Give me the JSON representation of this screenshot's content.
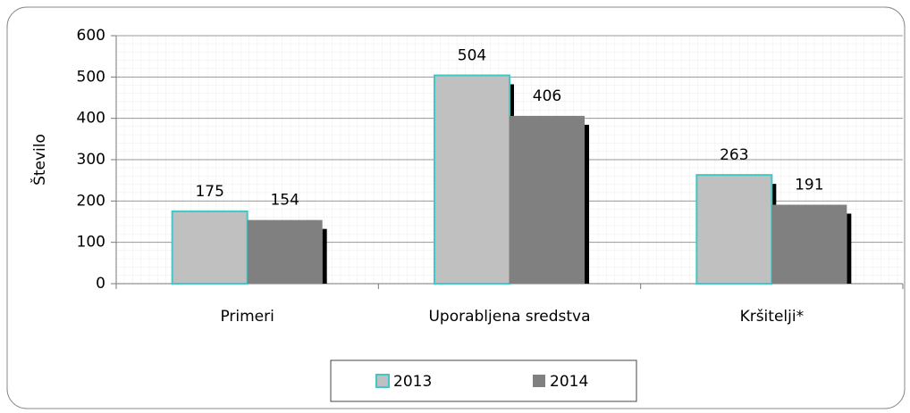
{
  "chart_data": {
    "type": "bar",
    "categories": [
      "Primeri",
      "Uporabljena sredstva",
      "Kršitelji*"
    ],
    "series": [
      {
        "name": "2013",
        "color": "#c0c0c0",
        "border": "#40c8c8",
        "values": [
          175,
          504,
          263
        ]
      },
      {
        "name": "2014",
        "color": "#808080",
        "values": [
          154,
          406,
          191
        ]
      }
    ],
    "y_label": "Število",
    "ylim": [
      0,
      600
    ],
    "yticks": [
      0,
      100,
      200,
      300,
      400,
      500,
      600
    ],
    "grid": true,
    "legend": "bottom"
  }
}
